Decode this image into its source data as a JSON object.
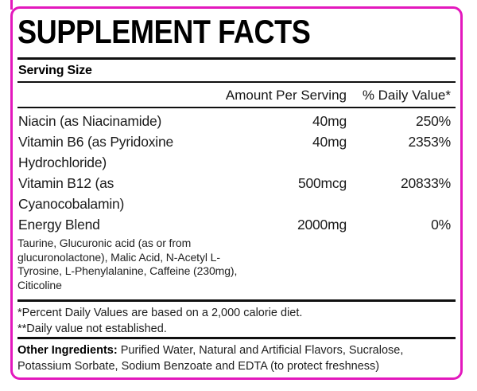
{
  "accent_color": "#e318bd",
  "label": {
    "title": "SUPPLEMENT FACTS",
    "serving_size": "Serving Size",
    "columns": {
      "amount": "Amount Per Serving",
      "daily_value": "% Daily Value*"
    },
    "rows": [
      {
        "name": "Niacin (as Niacinamide)",
        "amount": "40mg",
        "daily_value": "250%"
      },
      {
        "name": "Vitamin B6 (as Pyridoxine Hydrochloride)",
        "amount": "40mg",
        "daily_value": "2353%"
      },
      {
        "name": "Vitamin B12 (as Cyanocobalamin)",
        "amount": "500mcg",
        "daily_value": "20833%"
      },
      {
        "name": "Energy Blend",
        "amount": "2000mg",
        "daily_value": "0%"
      }
    ],
    "energy_blend_details": "Taurine, Glucuronic acid (as or from glucuronolactone), Malic Acid, N-Acetyl L-Tyrosine, L-Phenylalanine, Caffeine (230mg), Citicoline",
    "footnotes": [
      "*Percent Daily Values are based on a 2,000 calorie diet.",
      "**Daily value not established."
    ],
    "other_ingredients_label": "Other Ingredients:",
    "other_ingredients_text": " Purified Water, Natural and Artificial Flavors, Sucralose, Potassium Sorbate, Sodium Benzoate and EDTA (to protect freshness)"
  }
}
